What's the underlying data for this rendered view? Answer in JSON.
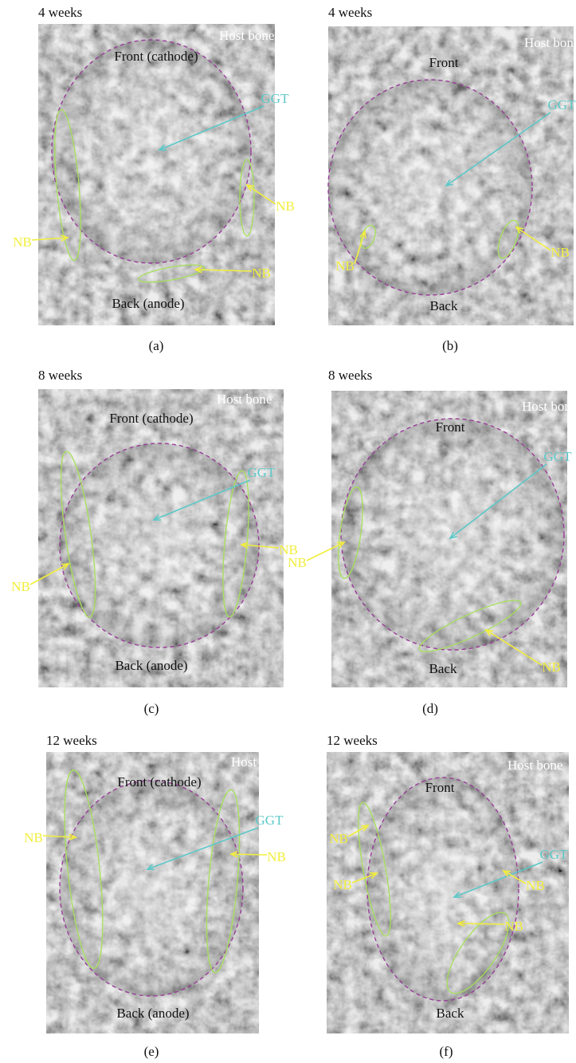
{
  "panels": [
    {
      "time": "4 weeks",
      "host": "Host bone",
      "front": "Front (cathode)",
      "back": "Back (anode)",
      "ggt": "GGT",
      "nb": [
        "NB",
        "NB",
        "NB"
      ],
      "caption": "(a)"
    },
    {
      "time": "4 weeks",
      "host": "Host bone",
      "front": "Front",
      "back": "Back",
      "ggt": "GGT",
      "nb": [
        "NB",
        "NB"
      ],
      "caption": "(b)"
    },
    {
      "time": "8 weeks",
      "host": "Host bone",
      "front": "Front (cathode)",
      "back": "Back (anode)",
      "ggt": "GGT",
      "nb": [
        "NB",
        "NB"
      ],
      "caption": "(c)"
    },
    {
      "time": "8 weeks",
      "host": "Host bone",
      "front": "Front",
      "back": "Back",
      "ggt": "GGT",
      "nb": [
        "NB",
        "NB"
      ],
      "caption": "(d)"
    },
    {
      "time": "12 weeks",
      "host": "Host bone",
      "front": "Front (cathode)",
      "back": "Back (anode)",
      "ggt": "GGT",
      "nb": [
        "NB",
        "NB"
      ],
      "caption": "(e)"
    },
    {
      "time": "12 weeks",
      "host": "Host bone",
      "front": "Front",
      "back": "Back",
      "ggt": "GGT",
      "nb": [
        "NB",
        "NB",
        "NB",
        "NB"
      ],
      "caption": "(f)"
    }
  ]
}
